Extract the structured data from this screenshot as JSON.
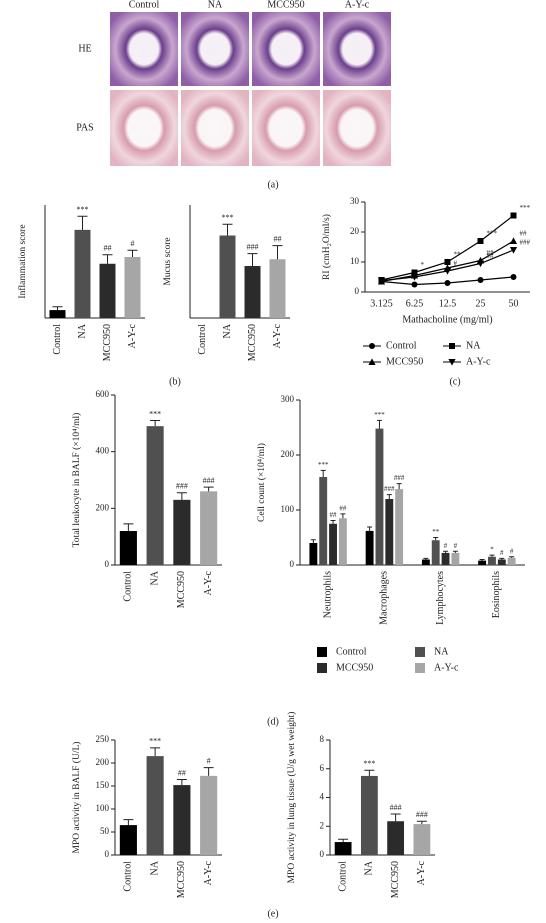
{
  "panel_a": {
    "columns": [
      "Control",
      "NA",
      "MCC950",
      "A-Y-c"
    ],
    "rows": [
      "HE",
      "PAS"
    ]
  },
  "panel_labels": {
    "a": "(a)",
    "b": "(b)",
    "c": "(c)",
    "d": "(d)",
    "e": "(e)"
  },
  "chart_data": [
    {
      "type": "bar",
      "ylabel": "Inflammation score",
      "categories": [
        "Control",
        "NA",
        "MCC950",
        "A-Y-c"
      ],
      "values": [
        0.35,
        3.9,
        2.4,
        2.7
      ],
      "errors": [
        0.15,
        0.6,
        0.4,
        0.3
      ],
      "colors": [
        "#000000",
        "#505050",
        "#2b2b2b",
        "#a6a6a6"
      ],
      "ylim": [
        0,
        5
      ],
      "annotations": [
        {
          "index": 1,
          "text": "***"
        },
        {
          "index": 2,
          "text": "##"
        },
        {
          "index": 3,
          "text": "#"
        }
      ]
    },
    {
      "type": "bar",
      "ylabel": "Mucus score",
      "categories": [
        "Control",
        "NA",
        "MCC950",
        "A-Y-c"
      ],
      "values": [
        0,
        3.65,
        2.3,
        2.6
      ],
      "errors": [
        0,
        0.5,
        0.55,
        0.6
      ],
      "colors": [
        "#000000",
        "#505050",
        "#2b2b2b",
        "#a6a6a6"
      ],
      "ylim": [
        0,
        5
      ],
      "annotations": [
        {
          "index": 1,
          "text": "***"
        },
        {
          "index": 2,
          "text": "###"
        },
        {
          "index": 3,
          "text": "##"
        }
      ]
    },
    {
      "type": "line",
      "ylabel": "RI (cmH₂O/ml/s)",
      "xlabel": "Mathacholine (mg/ml)",
      "categories": [
        "3.125",
        "6.25",
        "12.5",
        "25",
        "50"
      ],
      "ylim": [
        0,
        30
      ],
      "yticks": [
        0,
        10,
        20,
        30
      ],
      "legend": "bottom",
      "series": [
        {
          "name": "Control",
          "color": "#000000",
          "marker": "circle",
          "values": [
            3.5,
            2.5,
            3,
            4,
            5
          ]
        },
        {
          "name": "NA",
          "color": "#000000",
          "marker": "square",
          "values": [
            4,
            6.5,
            10,
            17,
            25.5
          ]
        },
        {
          "name": "MCC950",
          "color": "#000000",
          "marker": "triangle-up",
          "values": [
            3.5,
            5.5,
            8,
            10.5,
            17
          ]
        },
        {
          "name": "A-Y-c",
          "color": "#000000",
          "marker": "triangle-down",
          "values": [
            3.8,
            5,
            7,
            9.5,
            14
          ]
        }
      ],
      "annotations": [
        {
          "series": 1,
          "index": 1,
          "text": "*"
        },
        {
          "series": 1,
          "index": 2,
          "text": "**"
        },
        {
          "series": 3,
          "index": 2,
          "text": "#"
        },
        {
          "series": 1,
          "index": 3,
          "text": "***"
        },
        {
          "series": 2,
          "index": 3,
          "text": "##"
        },
        {
          "series": 3,
          "index": 3,
          "text": "##"
        },
        {
          "series": 1,
          "index": 4,
          "text": "***"
        },
        {
          "series": 2,
          "index": 4,
          "text": "##"
        },
        {
          "series": 3,
          "index": 4,
          "text": "###"
        }
      ]
    },
    {
      "type": "bar",
      "ylabel": "Total leukocyte in BALF (×10⁴/ml)",
      "categories": [
        "Control",
        "NA",
        "MCC950",
        "A-Y-c"
      ],
      "values": [
        120,
        490,
        230,
        260
      ],
      "errors": [
        25,
        20,
        25,
        15
      ],
      "colors": [
        "#000000",
        "#505050",
        "#2b2b2b",
        "#a6a6a6"
      ],
      "ylim": [
        0,
        600
      ],
      "yticks": [
        0,
        200,
        400,
        600
      ],
      "annotations": [
        {
          "index": 1,
          "text": "***"
        },
        {
          "index": 2,
          "text": "###"
        },
        {
          "index": 3,
          "text": "###"
        }
      ]
    },
    {
      "type": "grouped_bar",
      "ylabel": "Cell count (×10⁴/ml)",
      "categories": [
        "Neutrophils",
        "Macrophages",
        "Lymphocytes",
        "Eosinophils"
      ],
      "ylim": [
        0,
        300
      ],
      "yticks": [
        0,
        100,
        200,
        300
      ],
      "legend": "bottom",
      "series": [
        {
          "name": "Control",
          "color": "#000000",
          "values": [
            40,
            62,
            10,
            8
          ],
          "errors": [
            6,
            7,
            2,
            2
          ]
        },
        {
          "name": "NA",
          "color": "#505050",
          "values": [
            160,
            248,
            45,
            15
          ],
          "errors": [
            12,
            15,
            5,
            3
          ]
        },
        {
          "name": "MCC950",
          "color": "#2b2b2b",
          "values": [
            75,
            120,
            22,
            10
          ],
          "errors": [
            6,
            8,
            3,
            2
          ]
        },
        {
          "name": "A-Y-c",
          "color": "#a6a6a6",
          "values": [
            85,
            138,
            22,
            13
          ],
          "errors": [
            8,
            10,
            3,
            2
          ]
        }
      ],
      "annotations": [
        {
          "series": 1,
          "index": 0,
          "text": "***"
        },
        {
          "series": 2,
          "index": 0,
          "text": "##"
        },
        {
          "series": 3,
          "index": 0,
          "text": "##"
        },
        {
          "series": 1,
          "index": 1,
          "text": "***"
        },
        {
          "series": 2,
          "index": 1,
          "text": "###"
        },
        {
          "series": 3,
          "index": 1,
          "text": "###"
        },
        {
          "series": 1,
          "index": 2,
          "text": "**"
        },
        {
          "series": 2,
          "index": 2,
          "text": "#"
        },
        {
          "series": 3,
          "index": 2,
          "text": "#"
        },
        {
          "series": 1,
          "index": 3,
          "text": "*"
        },
        {
          "series": 2,
          "index": 3,
          "text": "#"
        },
        {
          "series": 3,
          "index": 3,
          "text": "#"
        }
      ]
    },
    {
      "type": "bar",
      "ylabel": "MPO activity in BALF (U/L)",
      "categories": [
        "Control",
        "NA",
        "MCC950",
        "A-Y-c"
      ],
      "values": [
        65,
        215,
        152,
        172
      ],
      "errors": [
        12,
        18,
        12,
        18
      ],
      "colors": [
        "#000000",
        "#505050",
        "#2b2b2b",
        "#a6a6a6"
      ],
      "ylim": [
        0,
        250
      ],
      "yticks": [
        0,
        50,
        100,
        150,
        200,
        250
      ],
      "annotations": [
        {
          "index": 1,
          "text": "***"
        },
        {
          "index": 2,
          "text": "##"
        },
        {
          "index": 3,
          "text": "#"
        }
      ]
    },
    {
      "type": "bar",
      "ylabel": "MPO activity in lung tissue (U/g wet weight)",
      "categories": [
        "Control",
        "NA",
        "MCC950",
        "A-Y-c"
      ],
      "values": [
        0.9,
        5.5,
        2.35,
        2.15
      ],
      "errors": [
        0.2,
        0.4,
        0.5,
        0.2
      ],
      "colors": [
        "#000000",
        "#505050",
        "#2b2b2b",
        "#a6a6a6"
      ],
      "ylim": [
        0,
        8
      ],
      "yticks": [
        0,
        2,
        4,
        6,
        8
      ],
      "annotations": [
        {
          "index": 1,
          "text": "***"
        },
        {
          "index": 2,
          "text": "###"
        },
        {
          "index": 3,
          "text": "###"
        }
      ]
    }
  ]
}
